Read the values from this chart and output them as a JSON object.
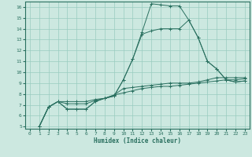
{
  "xlabel": "Humidex (Indice chaleur)",
  "ylabel": "",
  "bg_color": "#cce8e0",
  "grid_color": "#99ccc0",
  "line_color": "#2a7060",
  "xlim": [
    -0.5,
    23.5
  ],
  "ylim": [
    4.8,
    16.5
  ],
  "xticks": [
    0,
    1,
    2,
    3,
    4,
    5,
    6,
    7,
    8,
    9,
    10,
    11,
    12,
    13,
    14,
    15,
    16,
    17,
    18,
    19,
    20,
    21,
    22,
    23
  ],
  "yticks": [
    5,
    6,
    7,
    8,
    9,
    10,
    11,
    12,
    13,
    14,
    15,
    16
  ],
  "lines": [
    {
      "x": [
        1,
        2,
        3,
        4,
        5,
        6,
        7,
        8,
        9,
        10,
        11,
        12,
        13,
        14,
        15,
        16,
        17,
        18,
        19,
        20,
        21,
        22,
        23
      ],
      "y": [
        5.0,
        6.8,
        7.3,
        6.6,
        6.6,
        6.6,
        7.3,
        7.6,
        7.8,
        9.3,
        11.2,
        13.7,
        16.3,
        16.2,
        16.1,
        16.1,
        14.8,
        13.2,
        11.0,
        10.3,
        9.3,
        9.1,
        9.2
      ]
    },
    {
      "x": [
        1,
        2,
        3,
        4,
        5,
        6,
        7,
        8,
        9,
        10,
        11,
        12,
        13,
        14,
        15,
        16,
        17,
        18,
        19,
        20,
        21,
        22,
        23
      ],
      "y": [
        5.0,
        6.8,
        7.3,
        6.6,
        6.6,
        6.6,
        7.3,
        7.6,
        7.8,
        9.3,
        11.2,
        13.5,
        13.8,
        14.0,
        14.0,
        14.0,
        14.8,
        13.2,
        11.0,
        10.3,
        9.3,
        9.1,
        9.2
      ]
    },
    {
      "x": [
        1,
        2,
        3,
        4,
        5,
        6,
        7,
        8,
        9,
        10,
        11,
        12,
        13,
        14,
        15,
        16,
        17,
        18,
        19,
        20,
        21,
        22,
        23
      ],
      "y": [
        5.0,
        6.8,
        7.3,
        7.1,
        7.1,
        7.1,
        7.4,
        7.6,
        7.9,
        8.5,
        8.6,
        8.7,
        8.8,
        8.9,
        9.0,
        9.0,
        9.0,
        9.1,
        9.3,
        9.5,
        9.5,
        9.5,
        9.5
      ]
    },
    {
      "x": [
        1,
        2,
        3,
        4,
        5,
        6,
        7,
        8,
        9,
        10,
        11,
        12,
        13,
        14,
        15,
        16,
        17,
        18,
        19,
        20,
        21,
        22,
        23
      ],
      "y": [
        5.0,
        6.8,
        7.3,
        7.3,
        7.3,
        7.3,
        7.5,
        7.6,
        7.9,
        8.1,
        8.3,
        8.5,
        8.6,
        8.7,
        8.7,
        8.8,
        8.9,
        9.0,
        9.1,
        9.2,
        9.3,
        9.3,
        9.4
      ]
    }
  ]
}
